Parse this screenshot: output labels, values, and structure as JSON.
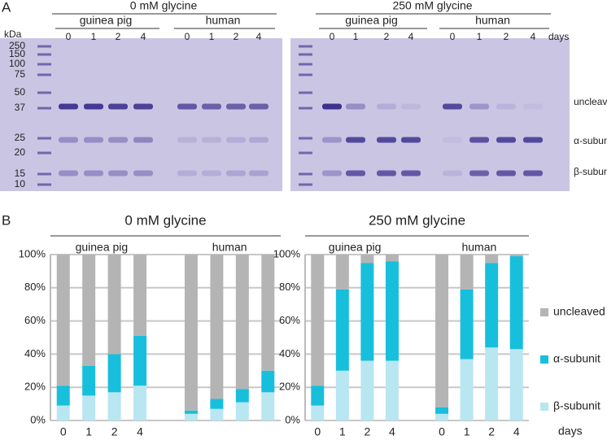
{
  "panel_a": {
    "label": "A",
    "kda_label": "kDa",
    "ladder": [
      250,
      150,
      100,
      75,
      50,
      37,
      25,
      20,
      15,
      10
    ],
    "gels": [
      {
        "title": "0 mM glycine",
        "groups": [
          {
            "name": "guinea pig",
            "lanes": [
              "0",
              "1",
              "2",
              "4"
            ]
          },
          {
            "name": "human",
            "lanes": [
              "0",
              "1",
              "2",
              "4"
            ]
          }
        ]
      },
      {
        "title": "250 mM glycine",
        "groups": [
          {
            "name": "guinea pig",
            "lanes": [
              "0",
              "1",
              "2",
              "4"
            ]
          },
          {
            "name": "human",
            "lanes": [
              "0",
              "1",
              "2",
              "4"
            ]
          }
        ],
        "days_label": "days"
      }
    ],
    "band_labels": [
      "uncleaved",
      "α-subunit",
      "β-subunit"
    ]
  },
  "panel_b_label": "B",
  "chart_data": [
    {
      "type": "bar",
      "stacked": true,
      "title": "0 mM glycine",
      "groups": [
        "guinea pig",
        "human"
      ],
      "categories": [
        "0",
        "1",
        "2",
        "4",
        null,
        null,
        null,
        null
      ],
      "series": [
        {
          "color": "#b8e6f1",
          "values": [
            9,
            15,
            17,
            21,
            4,
            7,
            11,
            17
          ]
        },
        {
          "color": "#17bfdc",
          "values": [
            12,
            18,
            23,
            30,
            2,
            6,
            8,
            13
          ]
        },
        {
          "color": "#b4b4b4",
          "values": [
            79,
            67,
            60,
            49,
            94,
            87,
            81,
            70
          ]
        }
      ],
      "ylim": [
        0,
        100
      ],
      "yticks": [
        {
          "value": 0,
          "label": "0%"
        },
        {
          "value": 20,
          "label": "20%"
        },
        {
          "value": 40,
          "label": "40%"
        },
        {
          "value": 60,
          "label": "60%"
        },
        {
          "value": 80,
          "label": "80%"
        },
        {
          "value": 100,
          "label": "100%"
        }
      ],
      "grid": true
    },
    {
      "type": "bar",
      "stacked": true,
      "title": "250 mM glycine",
      "groups": [
        "guinea pig",
        "human"
      ],
      "categories": [
        "0",
        "1",
        "2",
        "4",
        "0",
        "1",
        "2",
        "4"
      ],
      "series": [
        {
          "name": "β-subunit",
          "color": "#b8e6f1",
          "values": [
            9,
            30,
            36,
            36,
            4,
            37,
            44,
            43
          ]
        },
        {
          "name": "α-subunit",
          "color": "#17bfdc",
          "values": [
            12,
            49,
            59,
            60,
            4,
            42,
            51,
            56
          ]
        },
        {
          "name": "uncleaved",
          "color": "#b4b4b4",
          "values": [
            79,
            21,
            5,
            4,
            92,
            21,
            5,
            1
          ]
        }
      ],
      "ylim": [
        0,
        100
      ],
      "yticks": [
        {
          "value": 0,
          "label": "0%"
        },
        {
          "value": 20,
          "label": "20%"
        },
        {
          "value": 40,
          "label": "40%"
        },
        {
          "value": 60,
          "label": "60%"
        },
        {
          "value": 80,
          "label": "80%"
        },
        {
          "value": 100,
          "label": "100%"
        }
      ],
      "grid": true,
      "legend": "right",
      "x_label": "days"
    }
  ]
}
